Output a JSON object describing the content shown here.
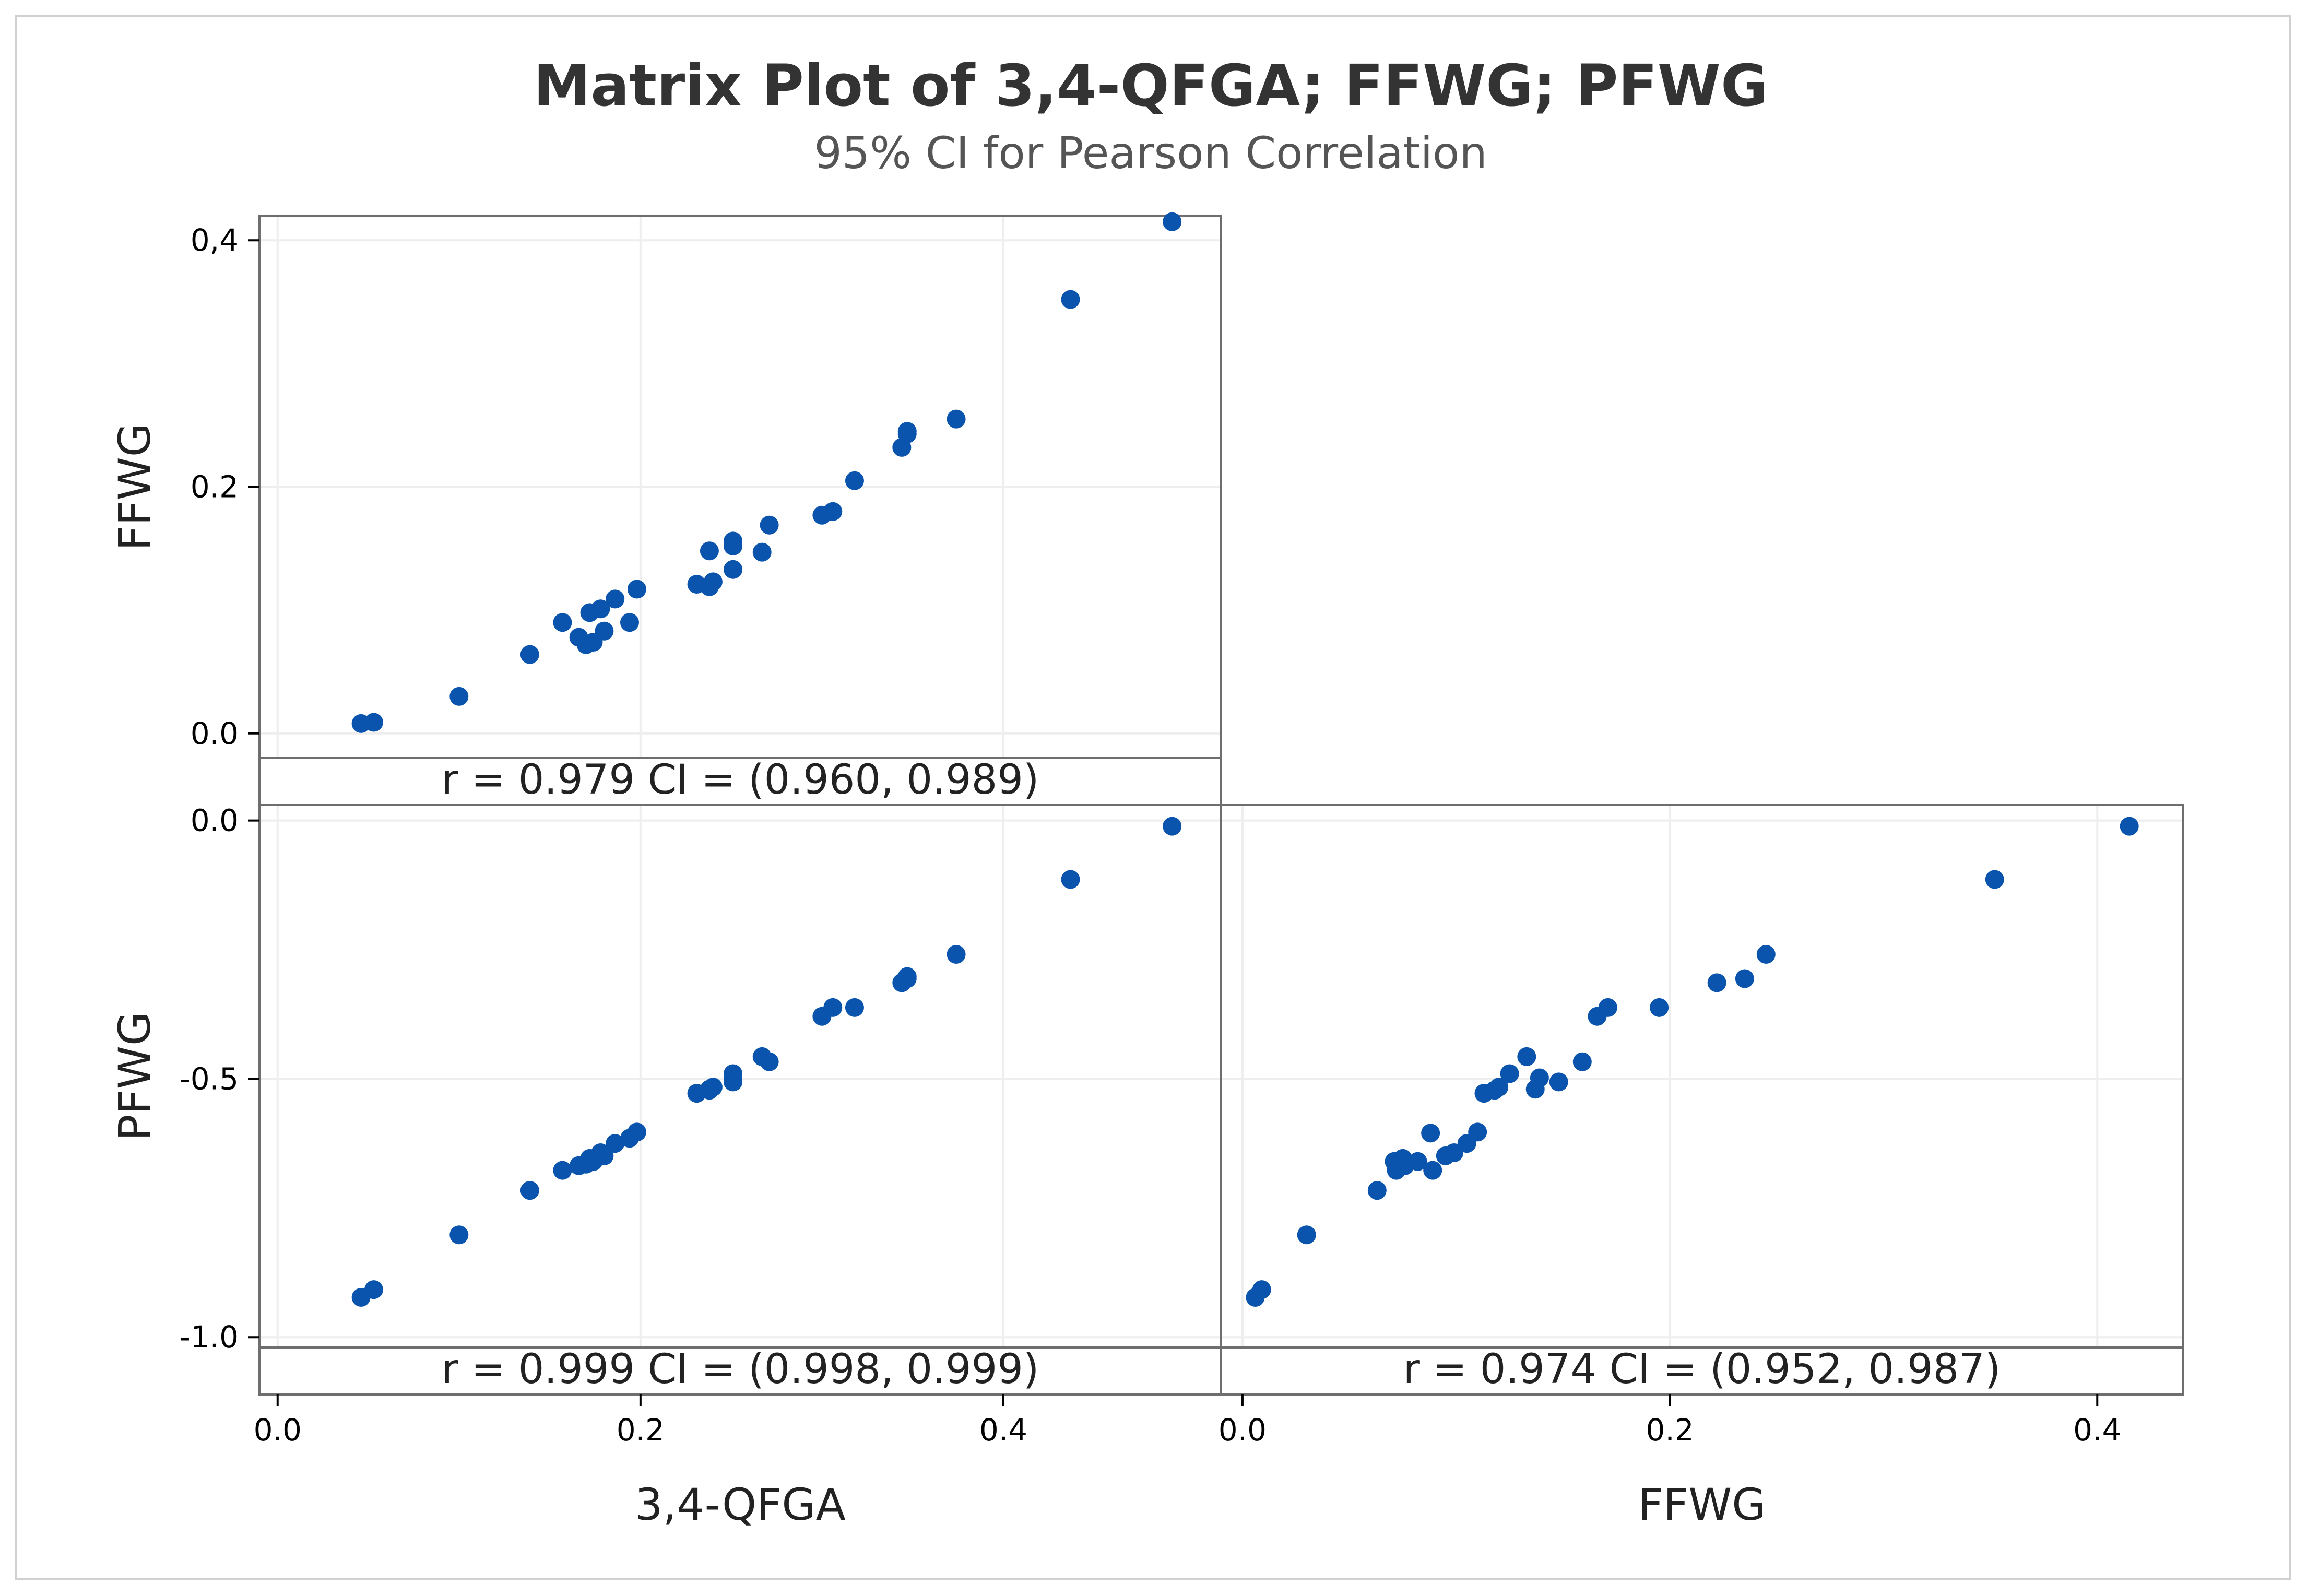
{
  "title": "Matrix Plot of 3,4-QFGA; FFWG; PFWG",
  "subtitle": "95% CI for Pearson Correlation",
  "colors": {
    "marker": "#0a54ad",
    "frame": "#6e6e6e",
    "grid": "#eeeeee"
  },
  "chart_data": [
    {
      "type": "scatter",
      "panel": "top-left",
      "xlabel": "3,4-QFGA",
      "ylabel": "FFWG",
      "xlim": [
        -0.01,
        0.52
      ],
      "ylim": [
        -0.02,
        0.42
      ],
      "xticks": [],
      "yticks": [
        {
          "value": 0.0,
          "label": "0.0"
        },
        {
          "value": 0.2,
          "label": "0.2"
        },
        {
          "value": 0.4,
          "label": "0,4"
        }
      ],
      "annotation": "r = 0.979  CI = (0.960, 0.989)",
      "points": [
        [
          0.046,
          0.008
        ],
        [
          0.053,
          0.009
        ],
        [
          0.1,
          0.03
        ],
        [
          0.139,
          0.064
        ],
        [
          0.157,
          0.09
        ],
        [
          0.166,
          0.078
        ],
        [
          0.17,
          0.072
        ],
        [
          0.172,
          0.098
        ],
        [
          0.174,
          0.074
        ],
        [
          0.178,
          0.101
        ],
        [
          0.18,
          0.083
        ],
        [
          0.186,
          0.109
        ],
        [
          0.194,
          0.09
        ],
        [
          0.198,
          0.117
        ],
        [
          0.231,
          0.121
        ],
        [
          0.238,
          0.148
        ],
        [
          0.238,
          0.119
        ],
        [
          0.24,
          0.123
        ],
        [
          0.251,
          0.133
        ],
        [
          0.251,
          0.152
        ],
        [
          0.251,
          0.156
        ],
        [
          0.267,
          0.147
        ],
        [
          0.271,
          0.169
        ],
        [
          0.3,
          0.177
        ],
        [
          0.306,
          0.18
        ],
        [
          0.318,
          0.205
        ],
        [
          0.344,
          0.232
        ],
        [
          0.347,
          0.243
        ],
        [
          0.347,
          0.245
        ],
        [
          0.374,
          0.255
        ],
        [
          0.437,
          0.352
        ],
        [
          0.493,
          0.415
        ]
      ]
    },
    {
      "type": "scatter",
      "panel": "bottom-left",
      "xlabel": "3,4-QFGA",
      "ylabel": "PFWG",
      "xlim": [
        -0.01,
        0.52
      ],
      "ylim": [
        -1.02,
        0.03
      ],
      "xticks": [
        {
          "value": 0.0,
          "label": "0.0"
        },
        {
          "value": 0.2,
          "label": "0.2"
        },
        {
          "value": 0.4,
          "label": "0.4"
        }
      ],
      "yticks": [
        {
          "value": -1.0,
          "label": "-1.0"
        },
        {
          "value": -0.5,
          "label": "-0.5"
        },
        {
          "value": 0.0,
          "label": "0.0"
        }
      ],
      "annotation": "r = 0.999  CI = (0.998, 0.999)",
      "points": [
        [
          0.046,
          -0.923
        ],
        [
          0.053,
          -0.908
        ],
        [
          0.1,
          -0.802
        ],
        [
          0.139,
          -0.716
        ],
        [
          0.157,
          -0.677
        ],
        [
          0.166,
          -0.668
        ],
        [
          0.17,
          -0.665
        ],
        [
          0.172,
          -0.654
        ],
        [
          0.174,
          -0.66
        ],
        [
          0.178,
          -0.643
        ],
        [
          0.18,
          -0.649
        ],
        [
          0.186,
          -0.625
        ],
        [
          0.194,
          -0.615
        ],
        [
          0.198,
          -0.603
        ],
        [
          0.231,
          -0.528
        ],
        [
          0.238,
          -0.522
        ],
        [
          0.238,
          -0.52
        ],
        [
          0.24,
          -0.516
        ],
        [
          0.251,
          -0.506
        ],
        [
          0.251,
          -0.498
        ],
        [
          0.251,
          -0.49
        ],
        [
          0.267,
          -0.457
        ],
        [
          0.271,
          -0.467
        ],
        [
          0.3,
          -0.379
        ],
        [
          0.306,
          -0.362
        ],
        [
          0.318,
          -0.362
        ],
        [
          0.344,
          -0.314
        ],
        [
          0.347,
          -0.306
        ],
        [
          0.347,
          -0.302
        ],
        [
          0.374,
          -0.259
        ],
        [
          0.437,
          -0.114
        ],
        [
          0.493,
          -0.011
        ]
      ]
    },
    {
      "type": "scatter",
      "panel": "bottom-right",
      "xlabel": "FFWG",
      "ylabel": "PFWG",
      "xlim": [
        -0.01,
        0.44
      ],
      "ylim": [
        -1.02,
        0.03
      ],
      "xticks": [
        {
          "value": 0.0,
          "label": "0.0"
        },
        {
          "value": 0.2,
          "label": "0.2"
        },
        {
          "value": 0.4,
          "label": "0.4"
        }
      ],
      "yticks": [],
      "annotation": "r = 0.974  CI = (0.952, 0.987)",
      "points": [
        [
          0.006,
          -0.923
        ],
        [
          0.009,
          -0.908
        ],
        [
          0.03,
          -0.802
        ],
        [
          0.063,
          -0.716
        ],
        [
          0.071,
          -0.66
        ],
        [
          0.072,
          -0.677
        ],
        [
          0.075,
          -0.654
        ],
        [
          0.076,
          -0.668
        ],
        [
          0.082,
          -0.66
        ],
        [
          0.088,
          -0.605
        ],
        [
          0.089,
          -0.677
        ],
        [
          0.095,
          -0.649
        ],
        [
          0.099,
          -0.643
        ],
        [
          0.105,
          -0.625
        ],
        [
          0.11,
          -0.603
        ],
        [
          0.113,
          -0.528
        ],
        [
          0.118,
          -0.522
        ],
        [
          0.12,
          -0.516
        ],
        [
          0.125,
          -0.49
        ],
        [
          0.133,
          -0.457
        ],
        [
          0.137,
          -0.52
        ],
        [
          0.139,
          -0.498
        ],
        [
          0.148,
          -0.506
        ],
        [
          0.159,
          -0.467
        ],
        [
          0.166,
          -0.379
        ],
        [
          0.171,
          -0.362
        ],
        [
          0.195,
          -0.362
        ],
        [
          0.222,
          -0.314
        ],
        [
          0.235,
          -0.306
        ],
        [
          0.245,
          -0.259
        ],
        [
          0.352,
          -0.114
        ],
        [
          0.415,
          -0.011
        ]
      ]
    }
  ]
}
